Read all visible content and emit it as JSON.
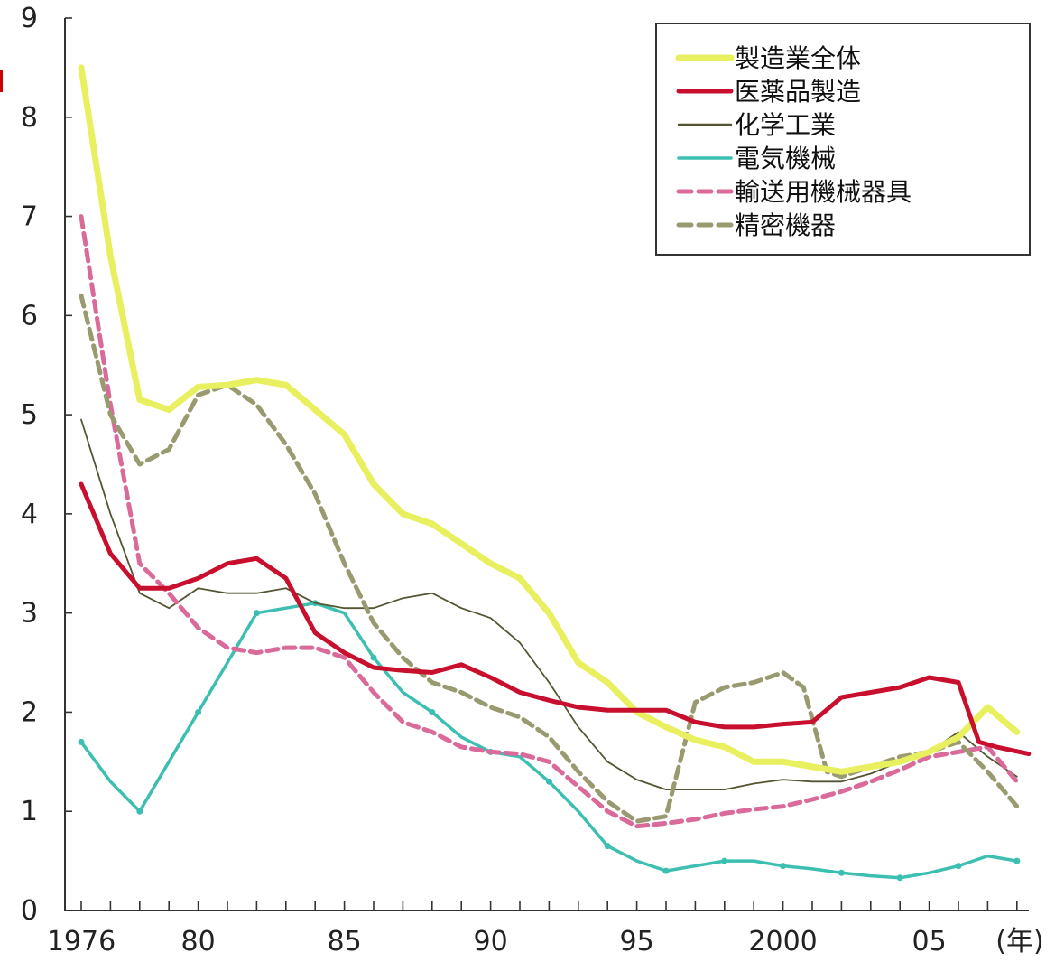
{
  "chart_data": {
    "type": "line",
    "title": "",
    "xlabel": "",
    "ylabel": "",
    "xlim": [
      1976,
      2008.5
    ],
    "ylim": [
      0,
      9
    ],
    "y_ticks": [
      0,
      1,
      2,
      3,
      4,
      5,
      6,
      7,
      8,
      9
    ],
    "x_ticks": [
      {
        "x": 1976,
        "label": "1976"
      },
      {
        "x": 1980,
        "label": "80"
      },
      {
        "x": 1985,
        "label": "85"
      },
      {
        "x": 1990,
        "label": "90"
      },
      {
        "x": 1995,
        "label": "95"
      },
      {
        "x": 2000,
        "label": "2000"
      },
      {
        "x": 2005,
        "label": "05"
      }
    ],
    "x_unit_label": "(年)",
    "legend_position": "top-right",
    "grid": false,
    "series": [
      {
        "name": "製造業全体",
        "color": "#e8f060",
        "width": 7,
        "dash": "",
        "x": [
          1976,
          1977,
          1978,
          1979,
          1980,
          1981,
          1982,
          1983,
          1984,
          1985,
          1986,
          1987,
          1988,
          1989,
          1990,
          1991,
          1992,
          1993,
          1994,
          1995,
          1996,
          1997,
          1998,
          1999,
          2000,
          2001,
          2002,
          2003,
          2004,
          2005,
          2006,
          2007,
          2008
        ],
        "y": [
          8.5,
          6.6,
          5.15,
          5.05,
          5.28,
          5.3,
          5.35,
          5.3,
          5.05,
          4.8,
          4.3,
          4.0,
          3.9,
          3.7,
          3.5,
          3.35,
          3.0,
          2.5,
          2.3,
          2.0,
          1.85,
          1.72,
          1.65,
          1.5,
          1.5,
          1.45,
          1.4,
          1.45,
          1.5,
          1.6,
          1.75,
          2.05,
          1.8
        ]
      },
      {
        "name": "医薬品製造",
        "color": "#c8102e",
        "width": 5,
        "dash": "",
        "x": [
          1976,
          1977,
          1978,
          1979,
          1980,
          1981,
          1982,
          1983,
          1984,
          1985,
          1986,
          1987,
          1988,
          1989,
          1990,
          1991,
          1992,
          1993,
          1994,
          1995,
          1996,
          1997,
          1998,
          1999,
          2000,
          2001,
          2002,
          2003,
          2004,
          2005,
          2006,
          2006.7,
          2007.3,
          2008.4
        ],
        "y": [
          4.3,
          3.6,
          3.25,
          3.25,
          3.35,
          3.5,
          3.55,
          3.35,
          2.8,
          2.6,
          2.45,
          2.42,
          2.4,
          2.48,
          2.35,
          2.2,
          2.12,
          2.05,
          2.02,
          2.02,
          2.02,
          1.9,
          1.85,
          1.85,
          1.88,
          1.9,
          2.15,
          2.2,
          2.25,
          2.35,
          2.3,
          1.7,
          1.65,
          1.58
        ]
      },
      {
        "name": "化学工業",
        "color": "#555533",
        "width": 1.8,
        "dash": "",
        "x": [
          1976,
          1977,
          1978,
          1979,
          1980,
          1981,
          1982,
          1983,
          1984,
          1985,
          1986,
          1987,
          1988,
          1989,
          1990,
          1991,
          1992,
          1993,
          1994,
          1995,
          1996,
          1997,
          1998,
          1999,
          2000,
          2001,
          2002,
          2003,
          2004,
          2005,
          2006,
          2007,
          2008
        ],
        "y": [
          4.95,
          4.0,
          3.2,
          3.05,
          3.25,
          3.2,
          3.2,
          3.25,
          3.1,
          3.05,
          3.05,
          3.15,
          3.2,
          3.05,
          2.95,
          2.7,
          2.3,
          1.85,
          1.5,
          1.32,
          1.22,
          1.22,
          1.22,
          1.28,
          1.32,
          1.3,
          1.3,
          1.38,
          1.5,
          1.6,
          1.8,
          1.55,
          1.35
        ]
      },
      {
        "name": "電気機械",
        "color": "#3cbfb0",
        "width": 3.5,
        "dash": "",
        "x": [
          1976,
          1977,
          1978,
          1979,
          1980,
          1981,
          1982,
          1983,
          1984,
          1985,
          1986,
          1987,
          1988,
          1989,
          1990,
          1991,
          1992,
          1993,
          1994,
          1995,
          1996,
          1997,
          1998,
          1999,
          2000,
          2001,
          2002,
          2003,
          2004,
          2005,
          2006,
          2007,
          2008
        ],
        "y": [
          1.7,
          1.3,
          1.0,
          1.5,
          2.0,
          2.5,
          3.0,
          3.05,
          3.1,
          3.0,
          2.55,
          2.2,
          2.0,
          1.75,
          1.6,
          1.55,
          1.3,
          1.0,
          0.65,
          0.5,
          0.4,
          0.45,
          0.5,
          0.5,
          0.45,
          0.42,
          0.38,
          0.35,
          0.33,
          0.38,
          0.45,
          0.55,
          0.5
        ]
      },
      {
        "name": "輸送用機械器具",
        "color": "#d96a9a",
        "width": 5,
        "dash": "12 7",
        "x": [
          1976,
          1977,
          1978,
          1979,
          1980,
          1981,
          1982,
          1983,
          1984,
          1985,
          1986,
          1987,
          1988,
          1989,
          1990,
          1991,
          1992,
          1993,
          1994,
          1995,
          1996,
          1997,
          1998,
          1999,
          2000,
          2001,
          2002,
          2003,
          2004,
          2005,
          2006,
          2007,
          2008
        ],
        "y": [
          7.0,
          5.1,
          3.5,
          3.2,
          2.85,
          2.65,
          2.6,
          2.65,
          2.65,
          2.55,
          2.2,
          1.9,
          1.8,
          1.65,
          1.6,
          1.58,
          1.5,
          1.25,
          1.0,
          0.85,
          0.88,
          0.92,
          0.98,
          1.02,
          1.05,
          1.12,
          1.2,
          1.3,
          1.42,
          1.55,
          1.6,
          1.65,
          1.3
        ]
      },
      {
        "name": "精密機器",
        "color": "#9a9a70",
        "width": 5,
        "dash": "12 7",
        "x": [
          1976,
          1977,
          1978,
          1979,
          1980,
          1981,
          1982,
          1983,
          1984,
          1985,
          1986,
          1987,
          1988,
          1989,
          1990,
          1991,
          1992,
          1993,
          1994,
          1995,
          1996,
          1997,
          1998,
          1999,
          2000,
          2000.7,
          2001.5,
          2002,
          2003,
          2004,
          2005,
          2006,
          2007,
          2008
        ],
        "y": [
          6.2,
          5.0,
          4.5,
          4.65,
          5.2,
          5.3,
          5.1,
          4.7,
          4.2,
          3.5,
          2.9,
          2.55,
          2.3,
          2.2,
          2.05,
          1.95,
          1.75,
          1.4,
          1.1,
          0.9,
          0.95,
          2.1,
          2.25,
          2.3,
          2.4,
          2.25,
          1.4,
          1.35,
          1.45,
          1.55,
          1.6,
          1.7,
          1.4,
          1.05
        ]
      }
    ]
  }
}
